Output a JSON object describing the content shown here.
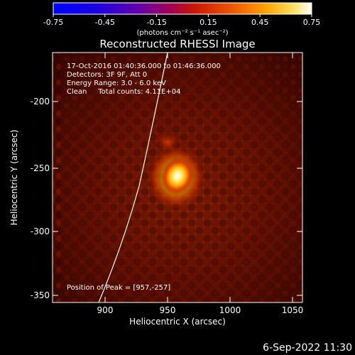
{
  "colorbar": {
    "ticks": [
      "-0.75",
      "-0.45",
      "-0.15",
      "0.15",
      "0.45",
      "0.75"
    ],
    "unit_label": "(photons cm⁻² s⁻¹ asec⁻²)"
  },
  "title": "Reconstructed RHESSI Image",
  "info": {
    "time_range": "17-Oct-2016 01:40:36.000 to 01:46:36.000",
    "detectors": "Detectors: 3F 9F, Att 0",
    "energy": "Energy Range: 3.0 - 6.0 keV",
    "clean": "Clean     Total counts: 4.11E+04",
    "peak": "Position of Peak = [957,-257]"
  },
  "axes": {
    "xlabel": "Heliocentric X (arcsec)",
    "ylabel": "Heliocentric Y (arcsec)",
    "xticks": [
      "900",
      "950",
      "1000",
      "1050"
    ],
    "yticks": [
      "-200",
      "-250",
      "-300",
      "-350"
    ]
  },
  "footer_timestamp": "6-Sep-2022 11:30",
  "colors": {
    "background": "#000000",
    "text": "#ffffff",
    "colormap": [
      "#0000ff",
      "#3a00c8",
      "#6a00a8",
      "#a00060",
      "#c81e00",
      "#e85a00",
      "#ffa000",
      "#ffe650",
      "#ffffff"
    ]
  }
}
